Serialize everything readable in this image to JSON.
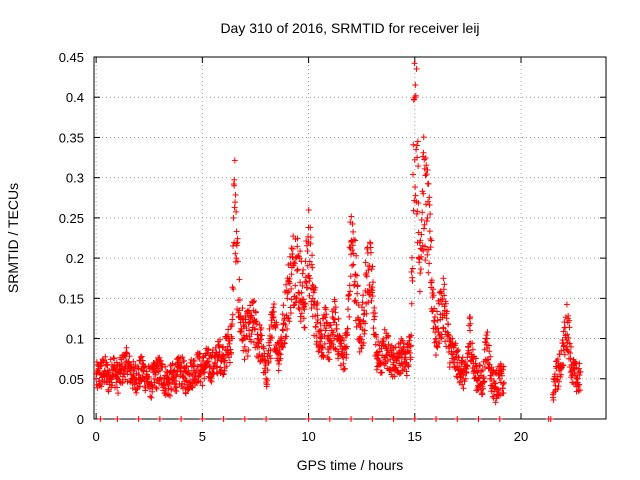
{
  "chart_data": {
    "type": "scatter",
    "title": "Day 310 of 2016, SRMTID for receiver leij",
    "xlabel": "GPS time / hours",
    "ylabel": "SRMTID / TECUs",
    "xlim": [
      -0.1,
      24
    ],
    "ylim": [
      0,
      0.45
    ],
    "x_ticks": [
      0,
      5,
      10,
      15,
      20
    ],
    "x_tick_labels": [
      "0",
      "5",
      "10",
      "15",
      "20"
    ],
    "y_ticks": [
      0,
      0.05,
      0.1,
      0.15,
      0.2,
      0.25,
      0.3,
      0.35,
      0.4,
      0.45
    ],
    "y_tick_labels": [
      "0",
      "0.05",
      "0.1",
      "0.15",
      "0.2",
      "0.25",
      "0.3",
      "0.35",
      "0.4",
      "0.45"
    ],
    "grid": true,
    "marker": "+",
    "series": [
      {
        "name": "SRMTID",
        "color": "#ff0000",
        "x": [
          0.0,
          0.2,
          0.4,
          0.6,
          0.8,
          1.0,
          1.2,
          1.4,
          1.6,
          1.8,
          2.0,
          2.2,
          2.4,
          2.6,
          2.8,
          3.0,
          3.2,
          3.4,
          3.6,
          3.8,
          4.0,
          4.2,
          4.4,
          4.6,
          4.8,
          5.0,
          5.2,
          5.4,
          5.6,
          5.8,
          6.0,
          6.2,
          6.4,
          6.5,
          6.6,
          6.8,
          7.0,
          7.2,
          7.4,
          7.6,
          7.8,
          8.0,
          8.2,
          8.4,
          8.6,
          8.8,
          9.0,
          9.2,
          9.4,
          9.6,
          9.8,
          10.0,
          10.2,
          10.4,
          10.6,
          10.8,
          11.0,
          11.2,
          11.4,
          11.6,
          11.8,
          12.0,
          12.2,
          12.4,
          12.6,
          12.8,
          13.0,
          13.2,
          13.4,
          13.6,
          13.8,
          14.0,
          14.2,
          14.4,
          14.6,
          14.8,
          15.0,
          15.1,
          15.2,
          15.4,
          15.6,
          15.8,
          16.0,
          16.2,
          16.4,
          16.6,
          16.8,
          17.0,
          17.2,
          17.4,
          17.6,
          17.8,
          18.0,
          18.2,
          18.4,
          18.6,
          18.8,
          19.0,
          19.2,
          21.4,
          21.6,
          21.8,
          22.0,
          22.2,
          22.4,
          22.6
        ],
        "y": [
          0.05,
          0.055,
          0.06,
          0.05,
          0.065,
          0.05,
          0.06,
          0.07,
          0.06,
          0.05,
          0.055,
          0.06,
          0.05,
          0.045,
          0.055,
          0.06,
          0.05,
          0.045,
          0.05,
          0.055,
          0.06,
          0.05,
          0.055,
          0.06,
          0.065,
          0.06,
          0.07,
          0.065,
          0.07,
          0.08,
          0.075,
          0.09,
          0.1,
          0.29,
          0.2,
          0.12,
          0.1,
          0.11,
          0.12,
          0.1,
          0.09,
          0.05,
          0.1,
          0.12,
          0.08,
          0.11,
          0.15,
          0.18,
          0.2,
          0.17,
          0.14,
          0.22,
          0.15,
          0.12,
          0.1,
          0.11,
          0.09,
          0.12,
          0.1,
          0.08,
          0.09,
          0.22,
          0.18,
          0.1,
          0.13,
          0.19,
          0.16,
          0.08,
          0.07,
          0.09,
          0.08,
          0.07,
          0.075,
          0.08,
          0.07,
          0.09,
          0.4,
          0.34,
          0.2,
          0.28,
          0.25,
          0.17,
          0.1,
          0.13,
          0.14,
          0.09,
          0.08,
          0.07,
          0.06,
          0.05,
          0.11,
          0.06,
          0.05,
          0.045,
          0.1,
          0.05,
          0.04,
          0.05,
          0.045,
          0.0,
          0.05,
          0.06,
          0.09,
          0.12,
          0.06,
          0.05
        ],
        "zero_x": [
          0.2,
          1.0,
          2.0,
          3.0,
          4.0,
          5.0,
          6.0,
          7.0,
          8.0,
          10.0,
          11.0,
          12.0,
          13.0,
          14.0,
          15.0,
          16.0,
          17.0,
          18.0,
          19.0,
          21.3
        ]
      }
    ]
  }
}
